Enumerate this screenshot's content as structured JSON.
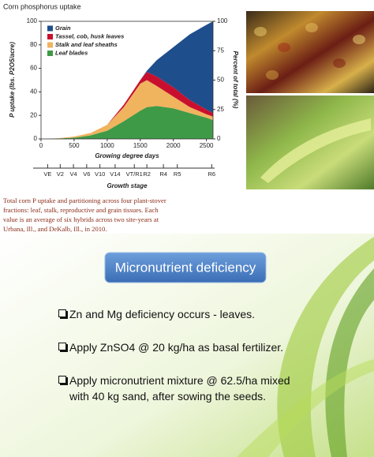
{
  "chart_data": {
    "type": "stacked-area",
    "title": "Corn phosphorus uptake",
    "ylabel": "P uptake (lbs. P2O5/acre)",
    "y2label": "Percent of total (%)",
    "xlabel": "Growing degree days",
    "x": [
      0,
      250,
      500,
      750,
      1000,
      1250,
      1500,
      1600,
      1750,
      2000,
      2250,
      2500,
      2600
    ],
    "series": [
      {
        "name": "Leaf blades",
        "color": "#3f9a47",
        "values": [
          0,
          0.3,
          1,
          3,
          7,
          15,
          24,
          27,
          28,
          26,
          22,
          18,
          16
        ]
      },
      {
        "name": "Stalk and leaf sheaths",
        "color": "#f0b35e",
        "values": [
          0,
          0.2,
          1,
          2,
          5,
          12,
          23,
          23,
          17,
          10,
          5,
          3,
          3
        ]
      },
      {
        "name": "Tassel, cob, husk leaves",
        "color": "#c8102e",
        "values": [
          0,
          0,
          0,
          0,
          0,
          2,
          3,
          7,
          8,
          8,
          6,
          4,
          3
        ]
      },
      {
        "name": "Grain",
        "color": "#1f4e8c",
        "values": [
          0,
          0,
          0,
          0,
          0,
          0,
          0,
          1,
          14,
          34,
          56,
          72,
          78
        ]
      }
    ],
    "xlim": [
      0,
      2600
    ],
    "xticks": [
      0,
      500,
      1000,
      1500,
      2000,
      2500
    ],
    "ylim": [
      0,
      100
    ],
    "yticks": [
      0,
      20,
      40,
      60,
      80,
      100
    ],
    "y2lim": [
      0,
      100
    ],
    "y2ticks": [
      0,
      25,
      50,
      75,
      100
    ],
    "stage_label": "Growth stage",
    "stages": [
      "VE",
      "V2",
      "V4",
      "V6",
      "V10",
      "V14",
      "VT/R1",
      "R2",
      "R4",
      "R5",
      "R6"
    ],
    "stage_gdd": [
      100,
      290,
      490,
      690,
      890,
      1120,
      1410,
      1600,
      1850,
      2060,
      2580
    ],
    "legend": "top-left"
  },
  "caption_lines": [
    "Total corn P uptake and partitioning across four plant-stover",
    "fractions: leaf, stalk, reproductive and grain tissues. Each",
    "value is an average of six hybrids across two site-years at",
    "Urbana, Ill., and DeKalb, Ill., in 2010."
  ],
  "slide": {
    "title": "Micronutrient deficiency",
    "bullets": [
      "Zn and Mg deficiency occurs - leaves.",
      "Apply ZnSO4 @ 20 kg/ha as basal fertilizer.",
      "Apply  micronutrient mixture @ 62.5/ha mixed with 40 kg sand, after sowing the seeds."
    ]
  }
}
